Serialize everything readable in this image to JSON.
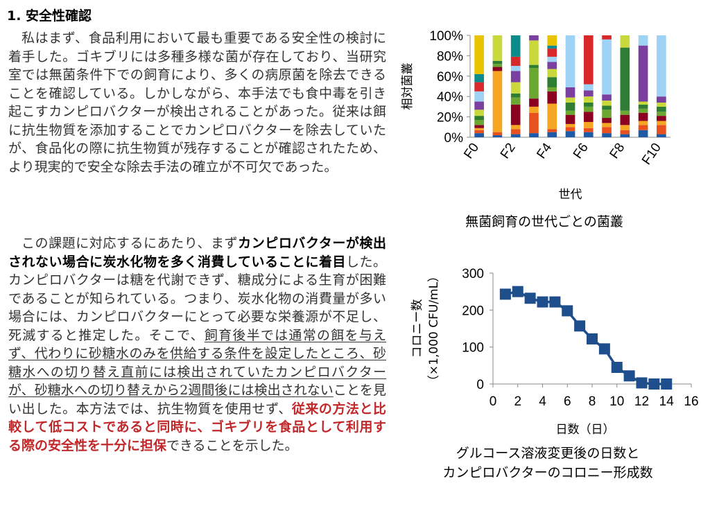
{
  "heading": "1. 安全性確認",
  "para1": "私はまず、食品利用において最も重要である安全性の検討に着手した。ゴキブリには多種多様な菌が存在しており、当研究室では無菌条件下での飼育により、多くの病原菌を除去できることを確認している。しかしながら、本手法でも食中毒を引き起こすカンピロバクターが検出されることがあった。従来は餌に抗生物質を添加することでカンピロバクターを除去していたが、食品化の際に抗生物質が残存することが確認されたため、より現実的で安全な除去手法の確立が不可欠であった。",
  "para2": {
    "t1": "この課題に対応するにあたり、まず",
    "b1": "カンピロバクターが検出されない場合に炭水化物を多く消費していることに着目",
    "t2": "した。カンピロバクターは糖を代謝できず、糖成分による生育が困難であることが知られている。つまり、炭水化物の消費量が多い場合には、カンピロバクターにとって必要な栄養源が不足し、死滅すると推定した。そこで、",
    "u1": "飼育後半では通常の餌を与えず、代わりに砂糖水のみを供給する条件を設定したところ、砂糖水への切り替え直前には検出されていたカンピロバクターが、砂糖水への切り替えから2週間後には検出されない",
    "t3": "ことを見い出した。本方法では、抗生物質を使用せず、",
    "r1": "従来の方法と比較して低コストであると同時に、ゴキブリを食品として利用する際の安全性を十分に担保",
    "t4": "できることを示した。"
  },
  "chart_data": [
    {
      "type": "bar",
      "stacked": true,
      "ylabel": "相対菌叢",
      "xlabel": "世代",
      "categories": [
        "F0",
        "F1",
        "F2",
        "F3",
        "F4",
        "F5",
        "F6",
        "F7",
        "F8",
        "F9",
        "F10"
      ],
      "x_tick_labels": [
        "F0",
        "F2",
        "F4",
        "F6",
        "F8",
        "F10"
      ],
      "y_ticks": [
        "0%",
        "20%",
        "40%",
        "60%",
        "80%",
        "100%"
      ],
      "ylim": [
        0,
        100
      ],
      "colors": [
        "#1f5aa6",
        "#e8501e",
        "#f5a623",
        "#8b0020",
        "#6aa832",
        "#2e7d32",
        "#c9d93b",
        "#7b3fa0",
        "#9fd3f5",
        "#d8282a",
        "#0b8c8c",
        "#e9c200",
        "#b05a1a"
      ],
      "stacks": [
        [
          4,
          3,
          2,
          3,
          5,
          4,
          6,
          8,
          10,
          9,
          8,
          38
        ],
        [
          2,
          3,
          60,
          4,
          3,
          3,
          25
        ],
        [
          3,
          5,
          4,
          20,
          7,
          4,
          11,
          11,
          5,
          9,
          21
        ],
        [
          4,
          20,
          6,
          8,
          30,
          3,
          24,
          5
        ],
        [
          5,
          3,
          25,
          12,
          4,
          10,
          8,
          7,
          5,
          8,
          3,
          10
        ],
        [
          6,
          4,
          3,
          9,
          4,
          8,
          5,
          10,
          51
        ],
        [
          5,
          4,
          6,
          10,
          5,
          4,
          6,
          6,
          6,
          48
        ],
        [
          4,
          6,
          4,
          5,
          8,
          4,
          5,
          6,
          54,
          4
        ],
        [
          3,
          4,
          5,
          10,
          4,
          62,
          12
        ],
        [
          7,
          5,
          4,
          8,
          4,
          4,
          3,
          55,
          10
        ],
        [
          3,
          9,
          4,
          5,
          4,
          5,
          4,
          6,
          60
        ]
      ],
      "caption": "無菌飼育の世代ごとの菌叢"
    },
    {
      "type": "line",
      "xlabel": "日数（日）",
      "ylabel_line1": "コロニー数",
      "ylabel_line2": "（×1,000 CFU/mL）",
      "x_ticks": [
        "0",
        "2",
        "4",
        "6",
        "8",
        "10",
        "12",
        "14",
        "16"
      ],
      "y_ticks": [
        "0",
        "100",
        "200",
        "300"
      ],
      "xlim": [
        0,
        16
      ],
      "ylim": [
        0,
        300
      ],
      "x": [
        1,
        2,
        3,
        4,
        5,
        6,
        7,
        8,
        9,
        10,
        11,
        12,
        13,
        14
      ],
      "y": [
        243,
        250,
        232,
        222,
        222,
        198,
        157,
        122,
        95,
        45,
        22,
        3,
        0,
        0
      ],
      "color": "#1f4e8c",
      "caption_line1": "グルコース溶液変更後の日数と",
      "caption_line2": "カンピロバクターのコロニー形成数"
    }
  ]
}
